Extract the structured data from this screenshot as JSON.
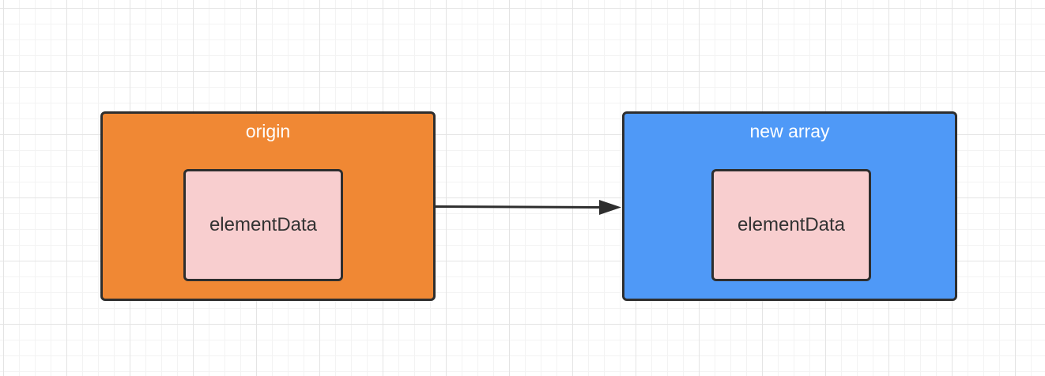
{
  "diagram": {
    "nodes": [
      {
        "id": "origin",
        "label": "origin",
        "color": "#f08834",
        "child": {
          "label": "elementData",
          "color": "#f8cecf"
        }
      },
      {
        "id": "new-array",
        "label": "new array",
        "color": "#4f99f7",
        "child": {
          "label": "elementData",
          "color": "#f8cecf"
        }
      }
    ],
    "edges": [
      {
        "from": "origin",
        "to": "new-array"
      }
    ],
    "colors": {
      "border": "#2e2e2e",
      "edge": "#2e2e2e"
    }
  }
}
